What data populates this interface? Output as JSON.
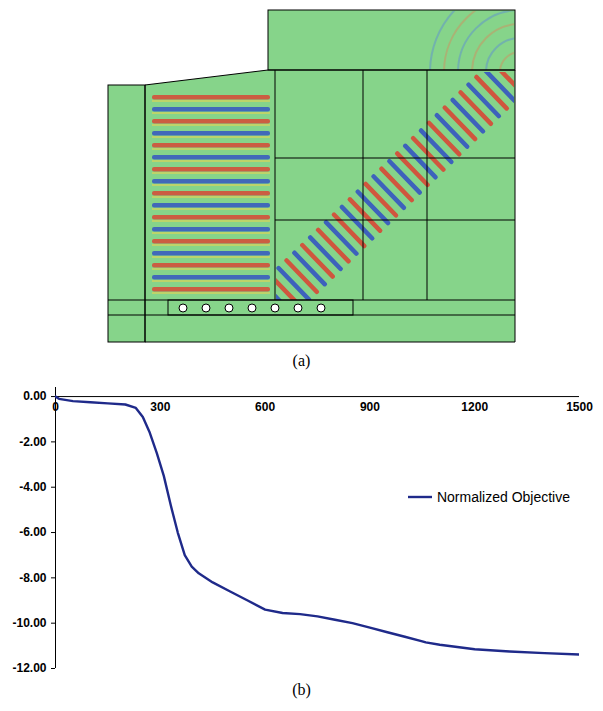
{
  "panels": {
    "a": {
      "label": "(a)"
    },
    "b": {
      "label": "(b)"
    }
  },
  "chart_data": {
    "type": "line",
    "x": [
      0,
      10,
      50,
      100,
      150,
      200,
      230,
      250,
      270,
      290,
      310,
      330,
      350,
      370,
      390,
      410,
      450,
      500,
      550,
      600,
      650,
      700,
      750,
      800,
      850,
      900,
      950,
      1000,
      1050,
      1060,
      1100,
      1150,
      1200,
      1300,
      1400,
      1500
    ],
    "series": [
      {
        "name": "Normalized Objective",
        "color": "#1f2a8a",
        "values": [
          0,
          -0.1,
          -0.2,
          -0.25,
          -0.3,
          -0.35,
          -0.5,
          -0.9,
          -1.6,
          -2.5,
          -3.5,
          -4.8,
          -6.0,
          -7.0,
          -7.5,
          -7.8,
          -8.2,
          -8.6,
          -9.0,
          -9.4,
          -9.55,
          -9.6,
          -9.7,
          -9.85,
          -10.0,
          -10.2,
          -10.4,
          -10.6,
          -10.8,
          -10.85,
          -10.95,
          -11.05,
          -11.15,
          -11.25,
          -11.32,
          -11.38
        ]
      }
    ],
    "xlim": [
      0,
      1500
    ],
    "xticks": [
      0,
      300,
      600,
      900,
      1200,
      1500
    ],
    "ylim": [
      -12,
      0.4
    ],
    "yticks": [
      {
        "value": 0,
        "label": "0.00"
      },
      {
        "value": -2,
        "label": "-2.00"
      },
      {
        "value": -4,
        "label": "-4.00"
      },
      {
        "value": -6,
        "label": "-6.00"
      },
      {
        "value": -8,
        "label": "-8.00"
      },
      {
        "value": -10,
        "label": "-10.00"
      },
      {
        "value": -12,
        "label": "-12.00"
      }
    ],
    "grid": false,
    "legend": "right"
  }
}
